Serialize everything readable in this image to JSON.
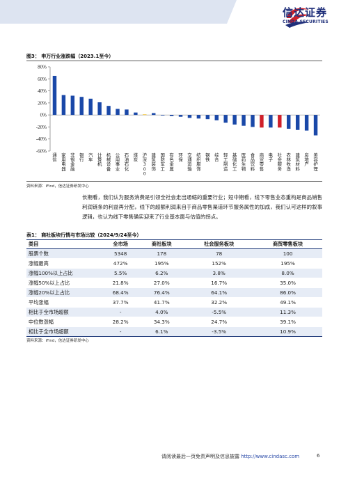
{
  "brand": {
    "name_cn": "信达证券",
    "name_en": "CINDA SECURITIES",
    "colors": {
      "navy": "#1f2f7a",
      "red": "#d0202a",
      "band": "#dde4f1"
    }
  },
  "figure": {
    "caption": "图3：  申万行业涨跌幅（2023.1至今）",
    "source": "资料来源：iFind，信达证券研发中心"
  },
  "chart_data": {
    "type": "bar",
    "ylim": [
      -60,
      80
    ],
    "yticks": [
      "80%",
      "60%",
      "40%",
      "20%",
      "0%",
      "-20%",
      "-40%",
      "-60%"
    ],
    "ytick_values": [
      80,
      60,
      40,
      20,
      0,
      -20,
      -40,
      -60
    ],
    "categories": [
      "通信",
      "家用电器",
      "非银金融",
      "银行",
      "汽车",
      "计算机",
      "机械设备",
      "公用事业",
      "石油石化",
      "煤炭",
      "沪深300",
      "建筑装饰",
      "国防军工",
      "有色金属",
      "环保",
      "交通运输",
      "纺织服饰",
      "钢铁",
      "综合",
      "轻工制造",
      "基础化工",
      "医药生物",
      "食品饮料",
      "商贸零售",
      "电子",
      "社会服务",
      "农林牧渔",
      "建筑材料",
      "房地产",
      "美容护理"
    ],
    "values": [
      65,
      33,
      32,
      30,
      27,
      21,
      15,
      10,
      9,
      4,
      1,
      3,
      -1,
      -2,
      -3,
      -5,
      -6,
      -7,
      -9,
      -13,
      -16,
      -18,
      -20,
      -21,
      -21,
      -21,
      -23,
      -25,
      -26,
      -34
    ],
    "colors_by_index": {
      "10": "#f2c230",
      "23": "#d0202a",
      "25": "#d0202a"
    },
    "default_color": "#1a48a8"
  },
  "paragraph": "长期看，我们认为服务消费是引领全社会走出通缩的重要行业；短中期看，线下零售业态重构是商品销售利润链条的利益再分配，线下的超额利润来自于商品零售渠道环节服务属性的加成，我们认可这样的叙事逻辑，也认为线下零售确实迎来了行业基本面与估值的拐点。",
  "table": {
    "caption": "表1：  商社板块行情与市场比较（2024/9/24至今）",
    "headers": [
      "类目",
      "全市场",
      "商社板块",
      "社会服务板块",
      "商贸零售板块"
    ],
    "rows": [
      [
        "股票个数",
        "5348",
        "178",
        "78",
        "100"
      ],
      [
        "涨幅最高",
        "472%",
        "195%",
        "152%",
        "195%"
      ],
      [
        "涨幅100%以上占比",
        "5.5%",
        "6.2%",
        "3.8%",
        "8.0%"
      ],
      [
        "涨幅50%以上占比",
        "21.8%",
        "27.0%",
        "16.7%",
        "35.0%"
      ],
      [
        "涨幅20%以上占比",
        "68.4%",
        "76.4%",
        "64.1%",
        "86.0%"
      ],
      [
        "平均涨幅",
        "37.7%",
        "41.7%",
        "32.2%",
        "49.1%"
      ],
      [
        "相比于全市场超额",
        "-",
        "4.0%",
        "-5.5%",
        "11.3%"
      ],
      [
        "中位数涨幅",
        "28.2%",
        "34.3%",
        "24.7%",
        "39.1%"
      ],
      [
        "相比于全市场超额",
        "-",
        "6.1%",
        "-3.5%",
        "10.9%"
      ]
    ],
    "source": "资料来源：iFind，信达证券研发中心"
  },
  "footer": {
    "text": "请阅读最后一页免责声明及信息披露",
    "url": "http://www.cindasc.com",
    "page": "6"
  }
}
